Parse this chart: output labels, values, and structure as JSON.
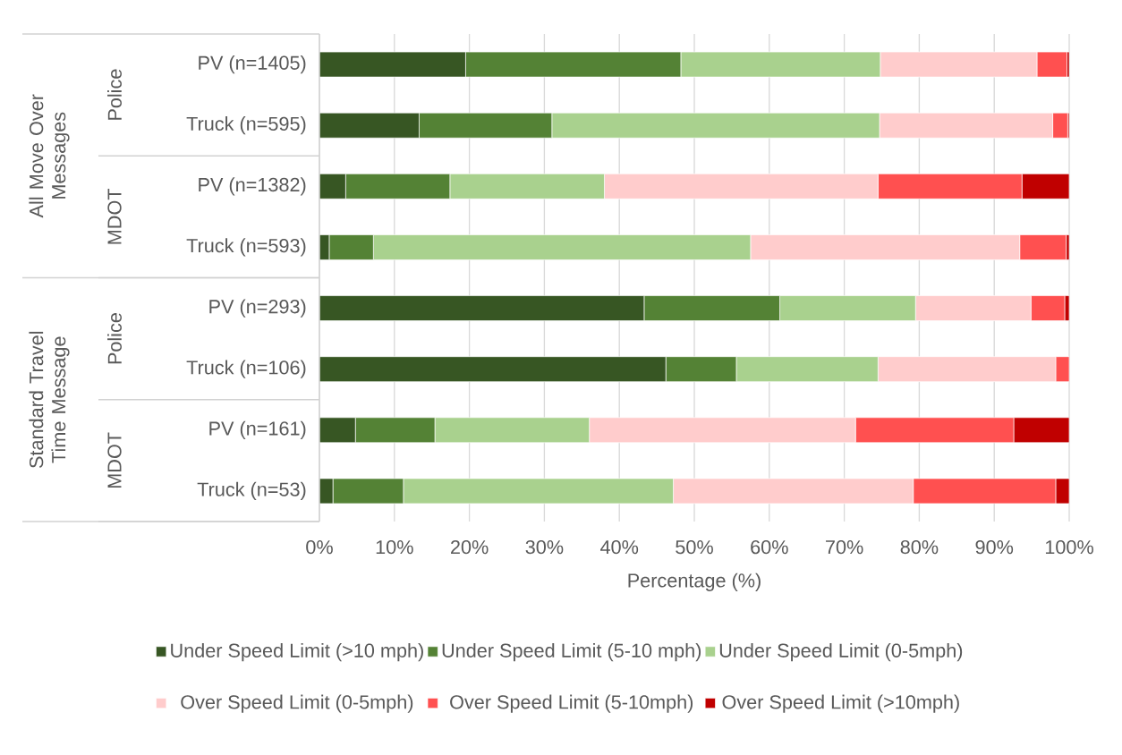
{
  "chart_data": {
    "type": "bar",
    "orientation": "horizontal",
    "stacked": true,
    "xlabel": "Percentage (%)",
    "categories": [
      "PV (n=1405)",
      "Truck (n=595)",
      "PV (n=1382)",
      "Truck (n=593)",
      "PV (n=293)",
      "Truck (n=106)",
      "PV (n=161)",
      "Truck (n=53)"
    ],
    "series": [
      {
        "name": "Under Speed Limit (>10 mph)",
        "color": "#375623",
        "values": [
          19.5,
          13.3,
          3.5,
          1.3,
          43.3,
          46.2,
          4.8,
          1.8
        ]
      },
      {
        "name": "Under Speed Limit (5-10 mph)",
        "color": "#548235",
        "values": [
          28.7,
          17.7,
          13.9,
          5.9,
          18.1,
          9.4,
          10.6,
          9.4
        ]
      },
      {
        "name": "Under Speed Limit (0-5mph)",
        "color": "#a9d18e",
        "values": [
          26.6,
          43.7,
          20.6,
          50.3,
          18.1,
          18.9,
          20.6,
          36.0
        ]
      },
      {
        "name": "Over Speed Limit (0-5mph)",
        "color": "#ffcccc",
        "values": [
          20.9,
          23.1,
          36.5,
          35.9,
          15.4,
          23.7,
          35.5,
          32.0
        ]
      },
      {
        "name": "Over Speed Limit (5-10mph)",
        "color": "#ff5050",
        "values": [
          4.0,
          2.0,
          19.2,
          6.2,
          4.5,
          1.8,
          21.1,
          19.0
        ]
      },
      {
        "name": "Over Speed Limit (>10mph)",
        "color": "#c00000",
        "values": [
          0.3,
          0.2,
          6.3,
          0.4,
          0.6,
          0,
          7.4,
          1.8
        ]
      }
    ],
    "xlim": [
      0,
      100
    ],
    "xticks": [
      {
        "value": 0,
        "label": "0%"
      },
      {
        "value": 10,
        "label": "10%"
      },
      {
        "value": 20,
        "label": "20%"
      },
      {
        "value": 30,
        "label": "30%"
      },
      {
        "value": 40,
        "label": "40%"
      },
      {
        "value": 50,
        "label": "50%"
      },
      {
        "value": 60,
        "label": "60%"
      },
      {
        "value": 70,
        "label": "70%"
      },
      {
        "value": 80,
        "label": "80%"
      },
      {
        "value": 90,
        "label": "90%"
      },
      {
        "value": 100,
        "label": "100%"
      }
    ],
    "grid": "x",
    "legend": "bottom",
    "annotations": [
      "All Move Over Messages",
      "Police",
      "MDOT",
      "Standard Travel Time Message",
      "Police",
      "MDOT"
    ]
  }
}
